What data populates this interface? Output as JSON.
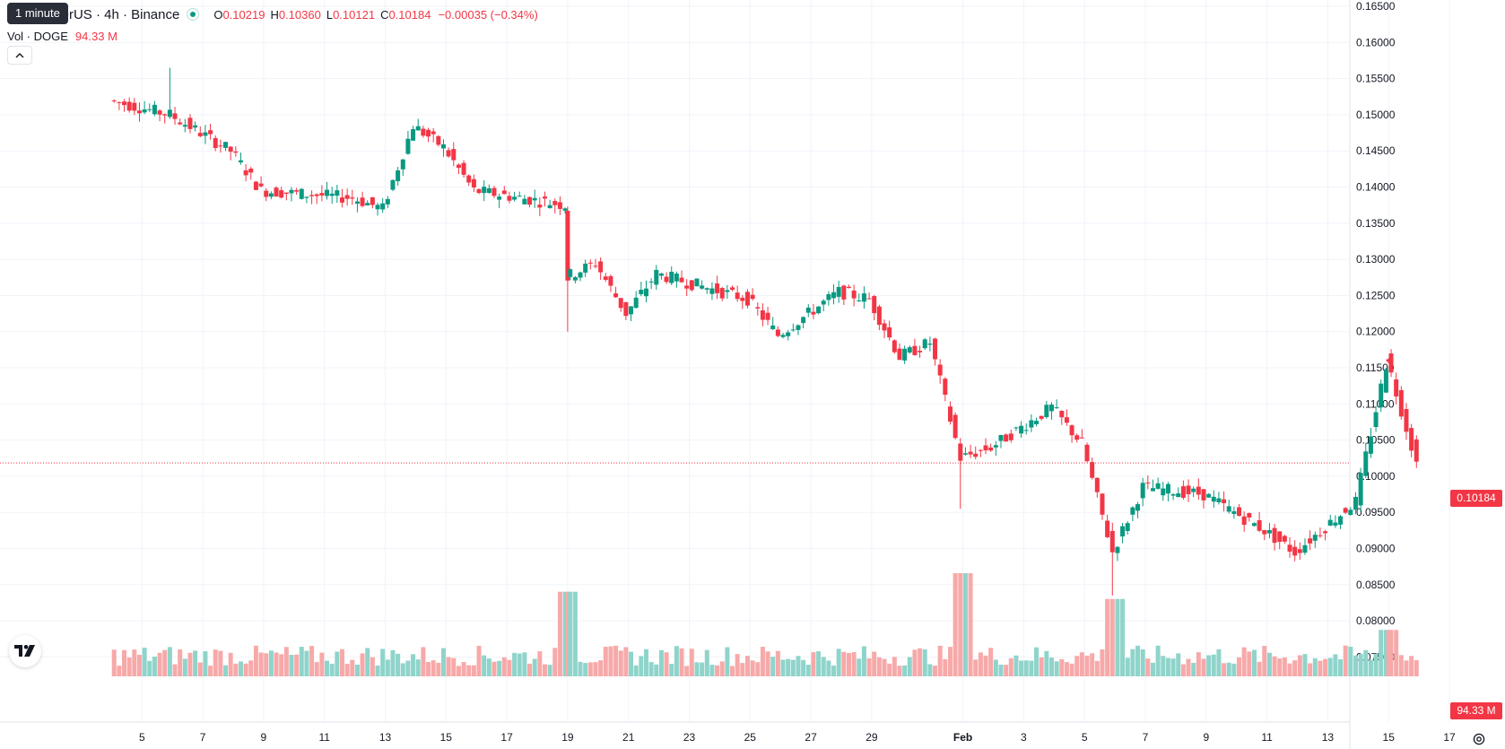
{
  "header": {
    "symbol_title": "oin / TetherUS · 4h · Binance",
    "tooltip": "1 minute",
    "ohlc": [
      {
        "key": "O",
        "value": "0.10219"
      },
      {
        "key": "H",
        "value": "0.10360"
      },
      {
        "key": "L",
        "value": "0.10121"
      },
      {
        "key": "C",
        "value": "0.10184"
      }
    ],
    "change": "−0.00035 (−0.34%)",
    "volume_label": "Vol · DOGE",
    "volume_value": "94.33 M"
  },
  "price_scale": {
    "labels": [
      "0.16500",
      "0.16000",
      "0.15500",
      "0.15000",
      "0.14500",
      "0.14000",
      "0.13500",
      "0.13000",
      "0.12500",
      "0.12000",
      "0.11500",
      "0.11000",
      "0.10500",
      "0.10000",
      "0.09500",
      "0.09000",
      "0.08500",
      "0.08000",
      "0.07500"
    ],
    "last_price_badge": "0.10184",
    "volume_badge": "94.33 M"
  },
  "time_scale": {
    "labels": [
      "5",
      "7",
      "9",
      "11",
      "13",
      "15",
      "17",
      "19",
      "21",
      "23",
      "25",
      "27",
      "29",
      "Feb",
      "3",
      "5",
      "7",
      "9",
      "11",
      "13",
      "15",
      "17"
    ],
    "bold_label": "Feb"
  },
  "icons": {
    "collapse": "chevron-up-icon",
    "logo": "tradingview-logo-icon",
    "settings": "gear-icon",
    "status": "market-open-dot-icon"
  },
  "colors": {
    "up": "#089981",
    "down": "#f23645",
    "up_volume": "#8fd4cb",
    "down_volume": "#f7a9a9",
    "grid": "#f0f3fa",
    "last_price_line": "#f23645"
  },
  "chart_data": {
    "type": "candlestick",
    "timeframe": "4h",
    "ylim": [
      0.075,
      0.165
    ],
    "last_price": 0.10184,
    "x_range": [
      "Jan 4",
      "Feb 17"
    ],
    "segments": [
      {
        "from": "Jan 4",
        "to": "Jan 6",
        "start": 0.152,
        "end": 0.15
      },
      {
        "from": "Jan 6",
        "to": "Jan 8",
        "start": 0.15,
        "end": 0.145
      },
      {
        "from": "Jan 8",
        "to": "Jan 9",
        "start": 0.145,
        "end": 0.1395
      },
      {
        "from": "Jan 9",
        "to": "Jan 12",
        "start": 0.1395,
        "end": 0.1385
      },
      {
        "from": "Jan 12",
        "to": "Jan 13",
        "start": 0.1385,
        "end": 0.137
      },
      {
        "from": "Jan 13",
        "to": "Jan 14",
        "start": 0.137,
        "end": 0.1485
      },
      {
        "from": "Jan 14",
        "to": "Jan 15",
        "start": 0.1485,
        "end": 0.1455
      },
      {
        "from": "Jan 15",
        "to": "Jan 16",
        "start": 0.1455,
        "end": 0.1395
      },
      {
        "from": "Jan 16",
        "to": "Jan 19",
        "start": 0.1395,
        "end": 0.1375
      },
      {
        "from": "Jan 19",
        "to": "Jan 19",
        "start": 0.1375,
        "end": 0.1275
      },
      {
        "from": "Jan 19",
        "to": "Jan 20",
        "start": 0.1275,
        "end": 0.1295
      },
      {
        "from": "Jan 20",
        "to": "Jan 21",
        "start": 0.1295,
        "end": 0.1225
      },
      {
        "from": "Jan 21",
        "to": "Jan 22",
        "start": 0.1225,
        "end": 0.128
      },
      {
        "from": "Jan 22",
        "to": "Jan 25",
        "start": 0.128,
        "end": 0.1245
      },
      {
        "from": "Jan 25",
        "to": "Jan 26",
        "start": 0.1245,
        "end": 0.1195
      },
      {
        "from": "Jan 26",
        "to": "Jan 28",
        "start": 0.1195,
        "end": 0.1255
      },
      {
        "from": "Jan 28",
        "to": "Jan 29",
        "start": 0.1255,
        "end": 0.1245
      },
      {
        "from": "Jan 29",
        "to": "Jan 30",
        "start": 0.1245,
        "end": 0.1165
      },
      {
        "from": "Jan 30",
        "to": "Jan 31",
        "start": 0.1165,
        "end": 0.1185
      },
      {
        "from": "Jan 31",
        "to": "Feb 1",
        "start": 0.1185,
        "end": 0.1025
      },
      {
        "from": "Feb 1",
        "to": "Feb 2",
        "start": 0.1025,
        "end": 0.104
      },
      {
        "from": "Feb 2",
        "to": "Feb 4",
        "start": 0.104,
        "end": 0.1095
      },
      {
        "from": "Feb 4",
        "to": "Feb 5",
        "start": 0.1095,
        "end": 0.1045
      },
      {
        "from": "Feb 5",
        "to": "Feb 6",
        "start": 0.1045,
        "end": 0.0895
      },
      {
        "from": "Feb 6",
        "to": "Feb 7",
        "start": 0.0895,
        "end": 0.0985
      },
      {
        "from": "Feb 7",
        "to": "Feb 9",
        "start": 0.0985,
        "end": 0.0975
      },
      {
        "from": "Feb 9",
        "to": "Feb 11",
        "start": 0.0975,
        "end": 0.0925
      },
      {
        "from": "Feb 11",
        "to": "Feb 12",
        "start": 0.0925,
        "end": 0.0895
      },
      {
        "from": "Feb 12",
        "to": "Feb 14",
        "start": 0.0895,
        "end": 0.0965
      },
      {
        "from": "Feb 14",
        "to": "Feb 15",
        "start": 0.0965,
        "end": 0.1155
      },
      {
        "from": "Feb 15",
        "to": "Feb 15",
        "start": 0.1155,
        "end": 0.1165
      },
      {
        "from": "Feb 15",
        "to": "Feb 16",
        "start": 0.1165,
        "end": 0.1018
      }
    ],
    "notable_wicks": [
      {
        "date": "Jan 19",
        "low": 0.12
      },
      {
        "date": "Feb 1",
        "low": 0.0955
      },
      {
        "date": "Feb 6",
        "low": 0.0835
      },
      {
        "date": "Jan 6",
        "high": 0.1565
      }
    ],
    "volume_spikes": [
      {
        "date": "Jan 19",
        "relative": 0.82
      },
      {
        "date": "Feb 1",
        "relative": 1.0
      },
      {
        "date": "Feb 6",
        "relative": 0.75
      },
      {
        "date": "Feb 15",
        "relative": 0.45
      }
    ],
    "grid": true,
    "volume_pane": true
  }
}
